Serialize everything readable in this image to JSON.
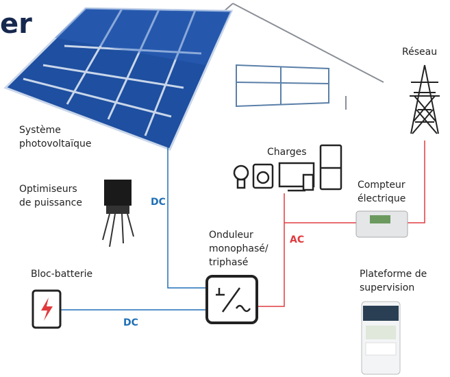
{
  "title": "er",
  "labels": {
    "pv": [
      "Système",
      "photovoltaïque"
    ],
    "optimizers": [
      "Optimiseurs",
      "de puissance"
    ],
    "dc_top": "DC",
    "loads": "Charges",
    "inverter": [
      "Onduleur",
      "monophasé/",
      "triphasé"
    ],
    "ac": "AC",
    "battery": "Bloc-batterie",
    "dc_bottom": "DC",
    "grid": "Réseau",
    "meter": [
      "Compteur",
      "électrique"
    ],
    "monitoring": [
      "Plateforme de",
      "supervision"
    ]
  }
}
